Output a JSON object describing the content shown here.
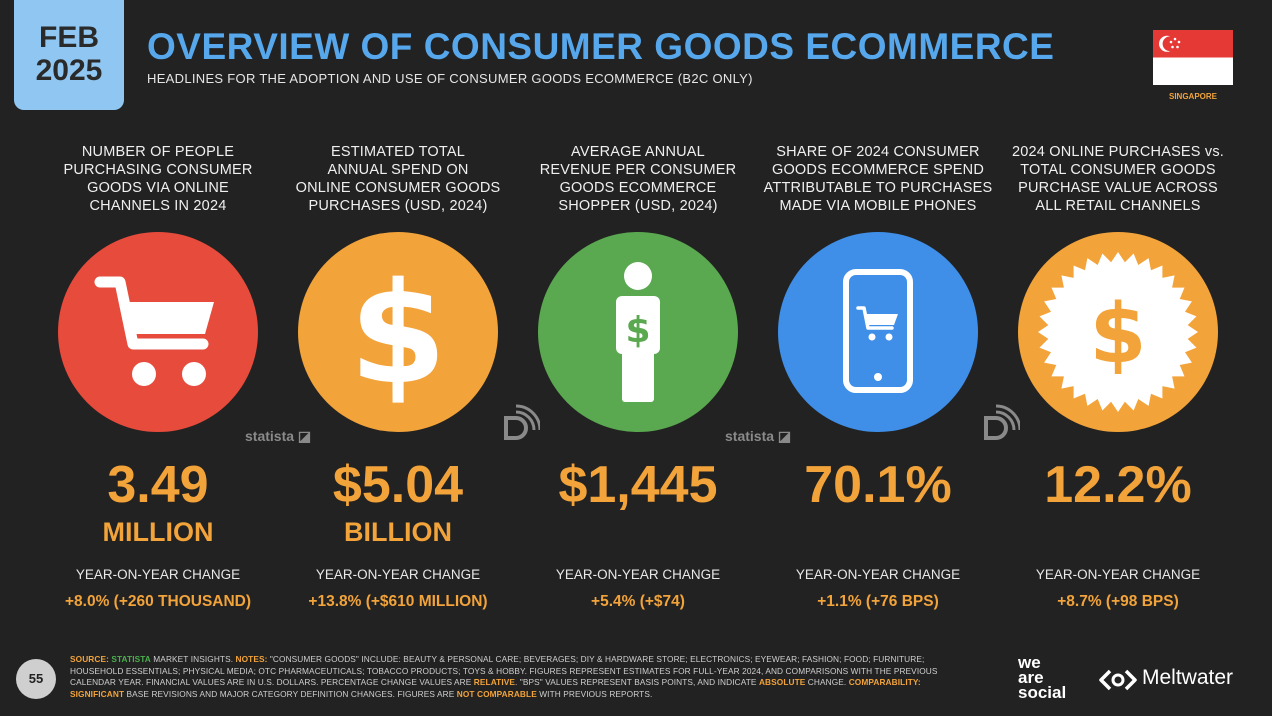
{
  "header": {
    "month": "FEB",
    "year": "2025",
    "title": "OVERVIEW OF CONSUMER GOODS ECOMMERCE",
    "subtitle": "HEADLINES FOR THE ADOPTION AND USE OF CONSUMER GOODS ECOMMERCE (B2C ONLY)",
    "country": "SINGAPORE"
  },
  "colors": {
    "red": "#e64b3c",
    "orange": "#f2a33a",
    "green": "#5aa84f",
    "blue": "#3f8fe8",
    "title_blue": "#56a7eb"
  },
  "metrics": [
    {
      "heading": [
        "NUMBER OF PEOPLE",
        "PURCHASING CONSUMER",
        "GOODS VIA ONLINE",
        "CHANNELS IN 2024"
      ],
      "icon": "shopping-cart-icon",
      "value": "3.49",
      "unit": "MILLION",
      "yoy_label": "YEAR-ON-YEAR CHANGE",
      "yoy_value": "+8.0% (+260 THOUSAND)"
    },
    {
      "heading": [
        "ESTIMATED TOTAL",
        "ANNUAL SPEND ON",
        "ONLINE CONSUMER GOODS",
        "PURCHASES (USD, 2024)"
      ],
      "icon": "dollar-icon",
      "value": "$5.04",
      "unit": "BILLION",
      "yoy_label": "YEAR-ON-YEAR CHANGE",
      "yoy_value": "+13.8% (+$610 MILLION)"
    },
    {
      "heading": [
        "AVERAGE ANNUAL",
        "REVENUE PER CONSUMER",
        "GOODS ECOMMERCE",
        "SHOPPER (USD, 2024)"
      ],
      "icon": "person-dollar-icon",
      "value": "$1,445",
      "unit": "",
      "yoy_label": "YEAR-ON-YEAR CHANGE",
      "yoy_value": "+5.4% (+$74)"
    },
    {
      "heading": [
        "SHARE OF 2024 CONSUMER",
        "GOODS ECOMMERCE SPEND",
        "ATTRIBUTABLE TO PURCHASES",
        "MADE VIA MOBILE PHONES"
      ],
      "icon": "mobile-cart-icon",
      "value": "70.1%",
      "unit": "",
      "yoy_label": "YEAR-ON-YEAR CHANGE",
      "yoy_value": "+1.1% (+76 BPS)"
    },
    {
      "heading": [
        "2024 ONLINE PURCHASES vs.",
        "TOTAL CONSUMER GOODS",
        "PURCHASE VALUE ACROSS",
        "ALL RETAIL CHANNELS"
      ],
      "icon": "badge-dollar-icon",
      "value": "12.2%",
      "unit": "",
      "yoy_label": "YEAR-ON-YEAR CHANGE",
      "yoy_value": "+8.7% (+98 BPS)"
    }
  ],
  "source_logos": {
    "statista": "statista"
  },
  "footer": {
    "page_number": "55",
    "source_label": "SOURCE:",
    "source_name": "STATISTA",
    "notes_part1": " MARKET INSIGHTS. ",
    "notes_label": "NOTES:",
    "notes_part2": " \"CONSUMER GOODS\" INCLUDE: BEAUTY & PERSONAL CARE; BEVERAGES; DIY & HARDWARE STORE; ELECTRONICS; EYEWEAR; FASHION; FOOD; FURNITURE; HOUSEHOLD ESSENTIALS; PHYSICAL MEDIA; OTC PHARMACEUTICALS; TOBACCO PRODUCTS; TOYS & HOBBY. FIGURES REPRESENT ESTIMATES FOR FULL-YEAR 2024, AND COMPARISONS WITH THE PREVIOUS CALENDAR YEAR. FINANCIAL VALUES ARE IN U.S. DOLLARS. PERCENTAGE CHANGE VALUES ARE ",
    "relative": "RELATIVE",
    "notes_part3": ". \"BPS\" VALUES REPRESENT BASIS POINTS, AND INDICATE ",
    "absolute": "ABSOLUTE",
    "notes_part4": " CHANGE. ",
    "comparability": "COMPARABILITY:",
    "significant": "SIGNIFICANT",
    "notes_part5": " BASE REVISIONS AND MAJOR CATEGORY DEFINITION CHANGES. FIGURES ARE ",
    "not_comparable": "NOT COMPARABLE",
    "notes_part6": " WITH PREVIOUS REPORTS.",
    "brand1_line1": "we",
    "brand1_line2": "are",
    "brand1_line3": "social",
    "brand2": "Meltwater"
  }
}
